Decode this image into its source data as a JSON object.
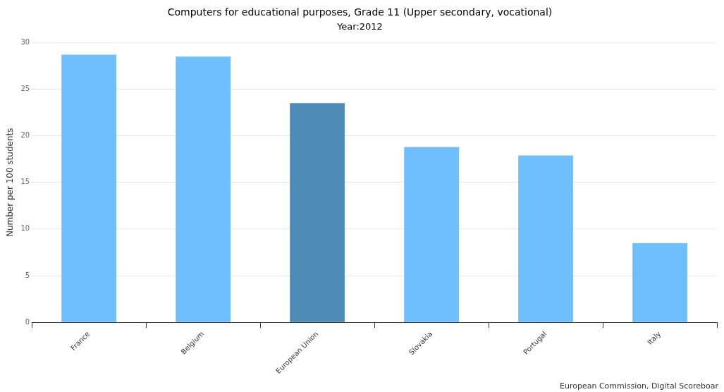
{
  "chart_data": {
    "type": "bar",
    "title": "Computers for educational purposes, Grade 11 (Upper secondary, vocational)",
    "subtitle": "Year:2012",
    "ylabel": "Number per 100 students",
    "categories": [
      "France",
      "Belgium",
      "European Union",
      "Slovakia",
      "Portugal",
      "Italy"
    ],
    "values": [
      28.7,
      28.5,
      23.5,
      18.8,
      17.9,
      8.5
    ],
    "colors": [
      "#6fbfff",
      "#6fbfff",
      "#4f8bb7",
      "#6fbfff",
      "#6fbfff",
      "#6fbfff"
    ],
    "ylim": [
      0,
      30
    ],
    "yticks": [
      0,
      5,
      10,
      15,
      20,
      25,
      30
    ],
    "grid": "y",
    "legend": false,
    "annotations": [
      "European Commission, Digital Scoreboar"
    ]
  }
}
